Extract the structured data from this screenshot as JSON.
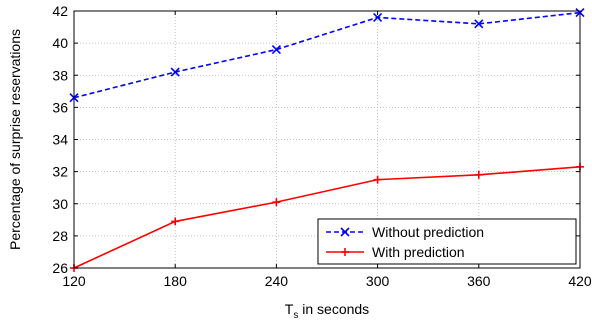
{
  "chart_data": {
    "type": "line",
    "xlabel_main": "T",
    "xlabel_sub": "s",
    "xlabel_rest": " in seconds",
    "ylabel": "Percentage of surprise reservations",
    "x": [
      120,
      180,
      240,
      300,
      360,
      420
    ],
    "xlim": [
      120,
      420
    ],
    "ylim": [
      26,
      42
    ],
    "xticks": [
      "120",
      "180",
      "240",
      "300",
      "360",
      "420"
    ],
    "yticks": [
      "26",
      "28",
      "30",
      "32",
      "34",
      "36",
      "38",
      "40",
      "42"
    ],
    "grid": true,
    "legend_position": "bottom-right",
    "series": [
      {
        "name": "Without prediction",
        "values": [
          36.6,
          38.2,
          39.6,
          41.6,
          41.2,
          41.9
        ],
        "color": "#0000ff",
        "line_style": "dashed",
        "marker": "x"
      },
      {
        "name": "With prediction",
        "values": [
          26.0,
          28.9,
          30.1,
          31.5,
          31.8,
          32.3
        ],
        "color": "#ff0000",
        "line_style": "solid",
        "marker": "+"
      }
    ]
  }
}
